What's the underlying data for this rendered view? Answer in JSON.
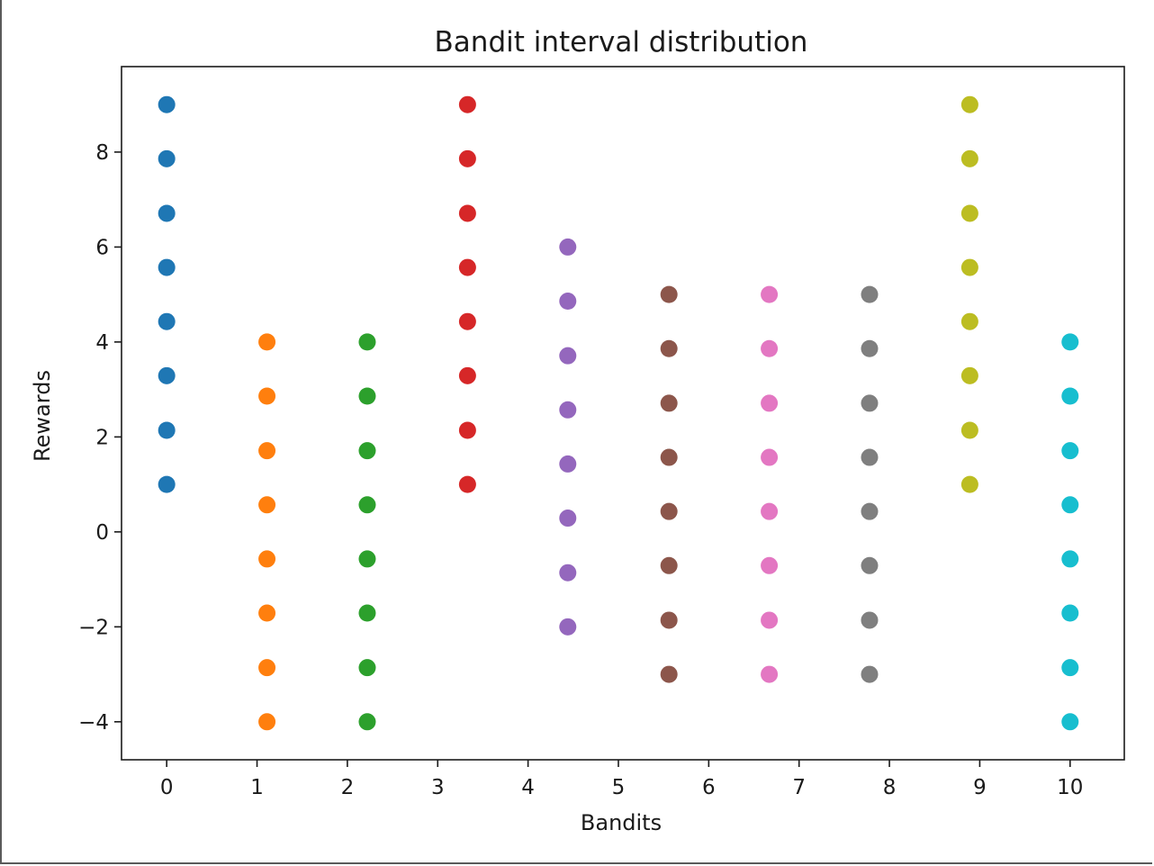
{
  "chart_data": {
    "type": "scatter",
    "title": "Bandit interval distribution",
    "xlabel": "Bandits",
    "ylabel": "Rewards",
    "xlim": [
      -0.5,
      10.6
    ],
    "ylim": [
      -4.8,
      9.8
    ],
    "xticks": [
      0,
      1,
      2,
      3,
      4,
      5,
      6,
      7,
      8,
      9,
      10
    ],
    "yticks": [
      -4,
      -2,
      0,
      2,
      4,
      6,
      8
    ],
    "ytick_labels": [
      "−4",
      "−2",
      "0",
      "2",
      "4",
      "6",
      "8"
    ],
    "grid": false,
    "series": [
      {
        "color": "#1f77b4",
        "x": [
          0,
          0,
          0,
          0,
          0,
          0,
          0,
          0
        ],
        "y": [
          1.0,
          2.14,
          3.29,
          4.43,
          5.57,
          6.71,
          7.86,
          9.0
        ]
      },
      {
        "color": "#ff7f0e",
        "x": [
          1.11,
          1.11,
          1.11,
          1.11,
          1.11,
          1.11,
          1.11,
          1.11
        ],
        "y": [
          -4.0,
          -2.86,
          -1.71,
          -0.57,
          0.57,
          1.71,
          2.86,
          4.0
        ]
      },
      {
        "color": "#2ca02c",
        "x": [
          2.22,
          2.22,
          2.22,
          2.22,
          2.22,
          2.22,
          2.22,
          2.22
        ],
        "y": [
          -4.0,
          -2.86,
          -1.71,
          -0.57,
          0.57,
          1.71,
          2.86,
          4.0
        ]
      },
      {
        "color": "#d62728",
        "x": [
          3.33,
          3.33,
          3.33,
          3.33,
          3.33,
          3.33,
          3.33,
          3.33
        ],
        "y": [
          1.0,
          2.14,
          3.29,
          4.43,
          5.57,
          6.71,
          7.86,
          9.0
        ]
      },
      {
        "color": "#9467bd",
        "x": [
          4.44,
          4.44,
          4.44,
          4.44,
          4.44,
          4.44,
          4.44,
          4.44
        ],
        "y": [
          -2.0,
          -0.86,
          0.29,
          1.43,
          2.57,
          3.71,
          4.86,
          6.0
        ]
      },
      {
        "color": "#8c564b",
        "x": [
          5.56,
          5.56,
          5.56,
          5.56,
          5.56,
          5.56,
          5.56,
          5.56
        ],
        "y": [
          -3.0,
          -1.86,
          -0.71,
          0.43,
          1.57,
          2.71,
          3.86,
          5.0
        ]
      },
      {
        "color": "#e377c2",
        "x": [
          6.67,
          6.67,
          6.67,
          6.67,
          6.67,
          6.67,
          6.67,
          6.67
        ],
        "y": [
          -3.0,
          -1.86,
          -0.71,
          0.43,
          1.57,
          2.71,
          3.86,
          5.0
        ]
      },
      {
        "color": "#7f7f7f",
        "x": [
          7.78,
          7.78,
          7.78,
          7.78,
          7.78,
          7.78,
          7.78,
          7.78
        ],
        "y": [
          -3.0,
          -1.86,
          -0.71,
          0.43,
          1.57,
          2.71,
          3.86,
          5.0
        ]
      },
      {
        "color": "#bcbd22",
        "x": [
          8.89,
          8.89,
          8.89,
          8.89,
          8.89,
          8.89,
          8.89,
          8.89
        ],
        "y": [
          1.0,
          2.14,
          3.29,
          4.43,
          5.57,
          6.71,
          7.86,
          9.0
        ]
      },
      {
        "color": "#17becf",
        "x": [
          10,
          10,
          10,
          10,
          10,
          10,
          10,
          10
        ],
        "y": [
          -4.0,
          -2.86,
          -1.71,
          -0.57,
          0.57,
          1.71,
          2.86,
          4.0
        ]
      }
    ]
  }
}
